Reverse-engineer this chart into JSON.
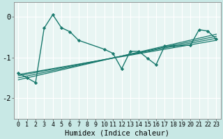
{
  "xlabel": "Humidex (Indice chaleur)",
  "bg_color": "#c8e8e5",
  "plot_bg_color": "#dde8e6",
  "line_color": "#1a7a6e",
  "grid_color": "#b0d0cc",
  "xlim": [
    -0.5,
    23.5
  ],
  "ylim": [
    -2.5,
    0.35
  ],
  "xticks": [
    0,
    1,
    2,
    3,
    4,
    5,
    6,
    7,
    8,
    9,
    10,
    11,
    12,
    13,
    14,
    15,
    16,
    17,
    18,
    19,
    20,
    21,
    22,
    23
  ],
  "yticks": [
    0,
    -1,
    -2
  ],
  "data_x": [
    0,
    1,
    2,
    3,
    4,
    5,
    6,
    7,
    10,
    11,
    12,
    13,
    14,
    15,
    16,
    17,
    18,
    20,
    21,
    22,
    23
  ],
  "data_y": [
    -1.38,
    -1.5,
    -1.62,
    -0.28,
    0.05,
    -0.27,
    -0.37,
    -0.58,
    -0.8,
    -0.9,
    -1.28,
    -0.85,
    -0.85,
    -1.02,
    -1.18,
    -0.72,
    -0.72,
    -0.7,
    -0.32,
    -0.35,
    -0.55
  ],
  "regression_lines": [
    {
      "x0": 0,
      "y0": -1.5,
      "x1": 23,
      "y1": -0.48
    },
    {
      "x0": 0,
      "y0": -1.55,
      "x1": 23,
      "y1": -0.43
    },
    {
      "x0": 0,
      "y0": -1.45,
      "x1": 23,
      "y1": -0.53
    },
    {
      "x0": 0,
      "y0": -1.42,
      "x1": 23,
      "y1": -0.58
    }
  ],
  "xlabel_fontsize": 7.5,
  "tick_fontsize": 6.0,
  "ytick_fontsize": 7.5
}
